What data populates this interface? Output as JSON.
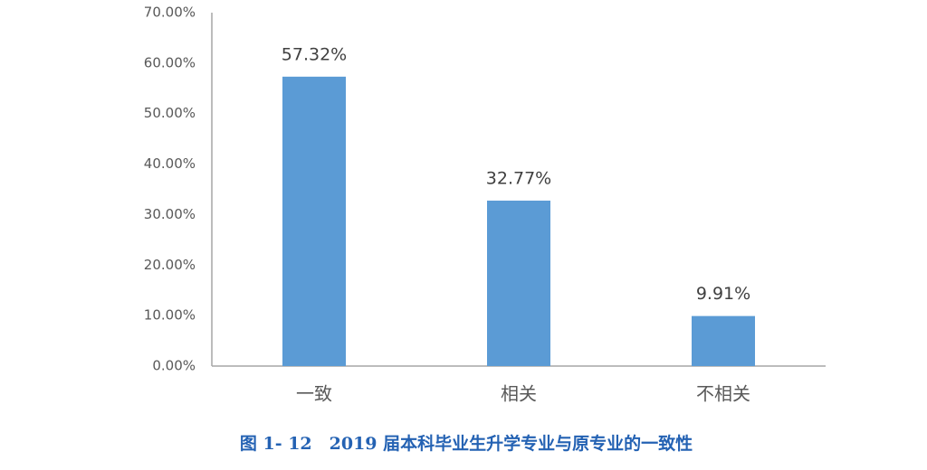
{
  "chart_data": {
    "type": "bar",
    "title": "图 1- 12　2019 届本科毕业生升学专业与原专业的一致性",
    "categories": [
      "一致",
      "相关",
      "不相关"
    ],
    "values": [
      57.32,
      32.77,
      9.91
    ],
    "value_labels": [
      "57.32%",
      "32.77%",
      "9.91%"
    ],
    "color": "#5b9bd5",
    "ylim": [
      0,
      70
    ],
    "yticks": [
      {
        "value": 0,
        "label": "0.00%"
      },
      {
        "value": 10,
        "label": "10.00%"
      },
      {
        "value": 20,
        "label": "20.00%"
      },
      {
        "value": 30,
        "label": "30.00%"
      },
      {
        "value": 40,
        "label": "40.00%"
      },
      {
        "value": 50,
        "label": "50.00%"
      },
      {
        "value": 60,
        "label": "60.00%"
      },
      {
        "value": 70,
        "label": "70.00%"
      }
    ],
    "grid": false
  }
}
